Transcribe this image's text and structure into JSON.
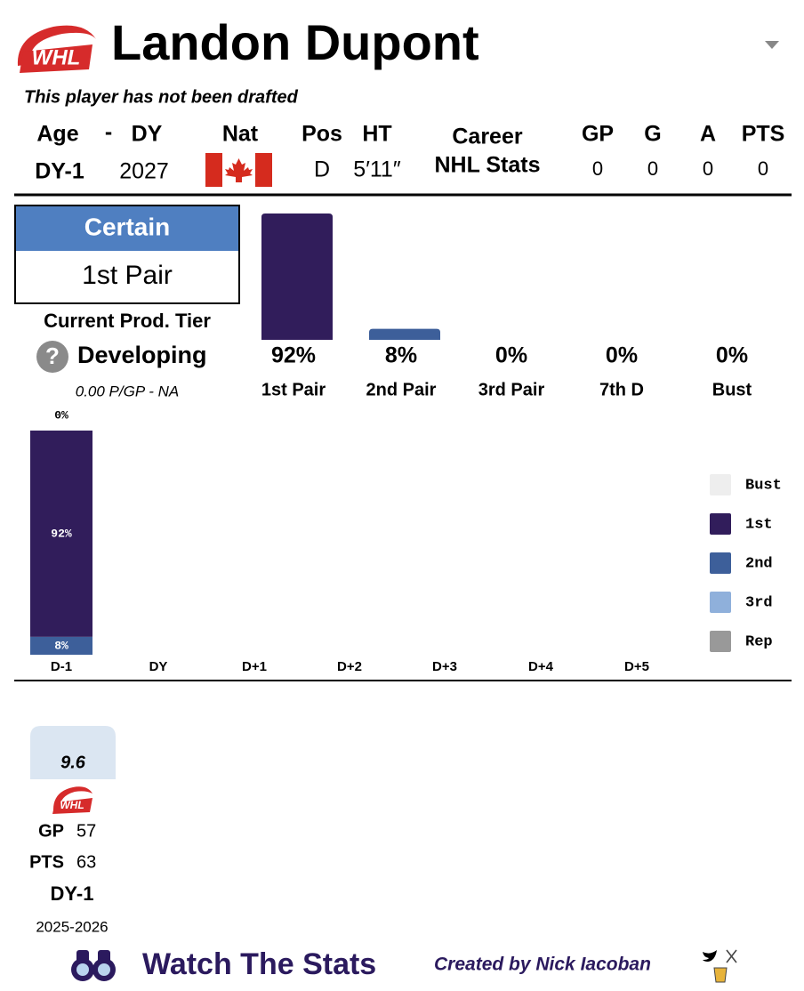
{
  "header": {
    "logo_text": "WHL",
    "title": "Landon Dupont",
    "subtitle": "This player has not been drafted"
  },
  "info": {
    "headers": [
      "Age",
      "-",
      "DY",
      "Nat",
      "Pos",
      "HT"
    ],
    "age": "DY-1",
    "draft_year": "2027",
    "position": "D",
    "height": "5′11″"
  },
  "career": {
    "label": [
      "Career",
      "NHL Stats"
    ],
    "headers": [
      "GP",
      "G",
      "A",
      "PTS"
    ],
    "values": [
      0,
      0,
      0,
      0
    ]
  },
  "projection": {
    "certainty": "Certain",
    "tier": "1st Pair"
  },
  "production": {
    "label": "Current Prod. Tier",
    "help_icon": "?",
    "tier": "Developing",
    "rate": "0.00 P/GP - NA"
  },
  "outcomes": {
    "type": "bar",
    "categories": [
      "1st Pair",
      "2nd Pair",
      "3rd Pair",
      "7th D",
      "Bust"
    ],
    "values": [
      92,
      8,
      0,
      0,
      0
    ],
    "value_labels": [
      "92%",
      "8%",
      "0%",
      "0%",
      "0%"
    ],
    "colors": [
      "#311d5b",
      "#3d5f9a",
      "#8fb0db",
      "#999999",
      "#eeeeee"
    ]
  },
  "history": {
    "type": "stacked_bar",
    "categories": [
      "D-1",
      "DY",
      "D+1",
      "D+2",
      "D+3",
      "D+4",
      "D+5"
    ],
    "series": [
      {
        "name": "Bust",
        "color": "#eeeeee",
        "values": [
          0,
          null,
          null,
          null,
          null,
          null,
          null
        ],
        "value_labels": [
          "0%",
          null,
          null,
          null,
          null,
          null,
          null
        ]
      },
      {
        "name": "1st",
        "color": "#311d5b",
        "values": [
          92,
          null,
          null,
          null,
          null,
          null,
          null
        ],
        "value_labels": [
          "92%",
          null,
          null,
          null,
          null,
          null,
          null
        ]
      },
      {
        "name": "2nd",
        "color": "#3d5f9a",
        "values": [
          8,
          null,
          null,
          null,
          null,
          null,
          null
        ],
        "value_labels": [
          "8%",
          null,
          null,
          null,
          null,
          null,
          null
        ]
      },
      {
        "name": "3rd",
        "color": "#8fb0db",
        "values": [
          0,
          null,
          null,
          null,
          null,
          null,
          null
        ],
        "value_labels": [
          "0%",
          null,
          null,
          null,
          null,
          null,
          null
        ]
      },
      {
        "name": "Rep",
        "color": "#999999",
        "values": [
          0,
          null,
          null,
          null,
          null,
          null,
          null
        ],
        "value_labels": [
          "0%",
          null,
          null,
          null,
          null,
          null,
          null
        ]
      }
    ],
    "ylim": [
      0,
      100
    ]
  },
  "season": {
    "score": 9.6,
    "stats": [
      {
        "label": "GP",
        "value": 57
      },
      {
        "label": "PTS",
        "value": 63
      }
    ],
    "age": "DY-1",
    "years": "2025-2026"
  },
  "footer": {
    "brand": "Watch The Stats",
    "credit": "Created by Nick Iacoban"
  }
}
